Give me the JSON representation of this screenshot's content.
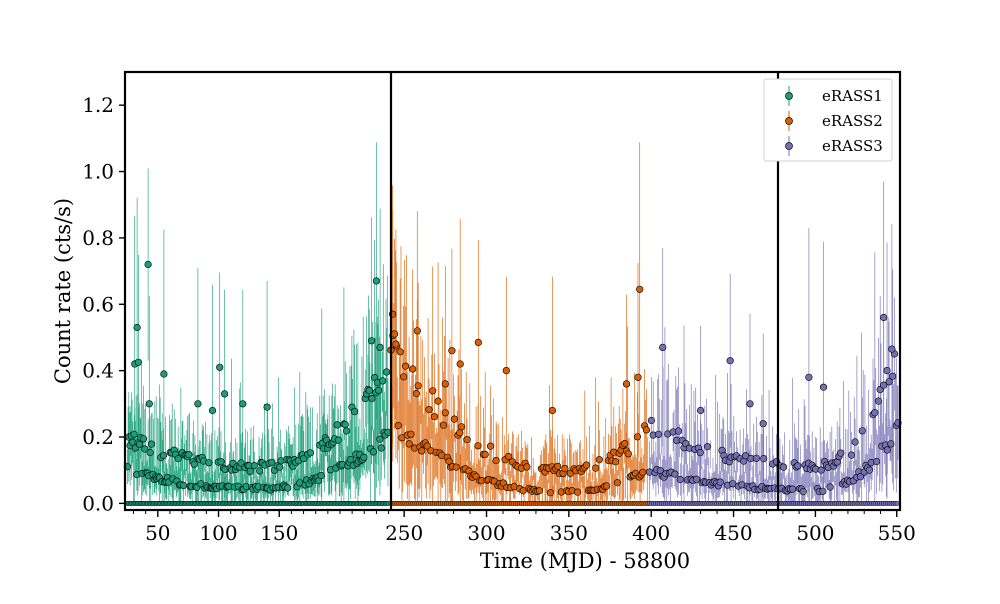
{
  "chart_data": {
    "type": "scatter",
    "title": "",
    "xlabel": "Time (MJD) - 58800",
    "ylabel": "Count rate (cts/s)",
    "ylim": [
      -0.02,
      1.3
    ],
    "yticks": [
      0.0,
      0.2,
      0.4,
      0.6,
      0.8,
      1.0,
      1.2
    ],
    "ytick_labels": [
      "0.0",
      "0.2",
      "0.4",
      "0.6",
      "0.8",
      "1.0",
      "1.2"
    ],
    "legend_position": "top-right",
    "grid": false,
    "broken_x_axis": true,
    "panels": [
      {
        "xlim": [
          23,
          242
        ],
        "xticks": [
          50,
          100,
          150
        ],
        "xtick_labels": [
          "50",
          "100",
          "150"
        ]
      },
      {
        "xlim": [
          242,
          477
        ],
        "xticks": [
          250,
          300,
          350,
          400,
          450
        ],
        "xtick_labels": [
          "250",
          "300",
          "350",
          "400",
          "450"
        ]
      },
      {
        "xlim": [
          477,
          552
        ],
        "xticks": [
          500,
          550
        ],
        "xtick_labels": [
          "500",
          "550"
        ]
      }
    ],
    "series": [
      {
        "name": "eRASS1",
        "color": "#1b9e77",
        "x_range": [
          25,
          240
        ],
        "trend": {
          "low_min": 0.045,
          "low_edge": [
            0.1,
            0.21
          ],
          "high_min": 0.11,
          "high_edge": [
            0.2,
            0.42
          ],
          "err_scale": 0.38,
          "peak_x": 132
        },
        "outliers": [
          [
            42,
            0.72
          ],
          [
            33,
            0.53
          ],
          [
            31,
            0.42
          ],
          [
            34,
            0.425
          ],
          [
            43,
            0.3
          ],
          [
            55,
            0.39
          ],
          [
            83,
            0.3
          ],
          [
            101,
            0.41
          ],
          [
            105,
            0.33
          ],
          [
            120,
            0.3
          ],
          [
            230,
            0.67
          ],
          [
            226,
            0.49
          ],
          [
            233,
            0.47
          ],
          [
            95,
            0.28
          ],
          [
            140,
            0.29
          ]
        ]
      },
      {
        "name": "eRASS2",
        "color": "#d95f02",
        "x_range": [
          242,
          398
        ],
        "trend": {
          "low_min": 0.035,
          "low_edge": [
            0.25,
            0.1
          ],
          "high_min": 0.1,
          "high_edge": [
            0.48,
            0.22
          ],
          "err_scale": 0.42,
          "peak_x": 345
        },
        "outliers": [
          [
            243,
            0.57
          ],
          [
            245,
            0.48
          ],
          [
            258,
            0.52
          ],
          [
            279,
            0.46
          ],
          [
            284,
            0.42
          ],
          [
            295,
            0.485
          ],
          [
            312,
            0.4
          ],
          [
            393,
            0.645
          ],
          [
            392,
            0.38
          ],
          [
            385,
            0.36
          ],
          [
            275,
            0.36
          ],
          [
            340,
            0.28
          ]
        ]
      },
      {
        "name": "eRASS3",
        "color": "#7570b3",
        "x_range": [
          399,
          551
        ],
        "trend": {
          "low_min": 0.04,
          "low_edge": [
            0.1,
            0.23
          ],
          "high_min": 0.11,
          "high_edge": [
            0.24,
            0.46
          ],
          "err_scale": 0.4,
          "peak_x": 500
        },
        "outliers": [
          [
            407,
            0.47
          ],
          [
            448,
            0.43
          ],
          [
            468,
            0.24
          ],
          [
            496,
            0.38
          ],
          [
            505,
            0.35
          ],
          [
            542,
            0.56
          ],
          [
            547,
            0.465
          ],
          [
            544,
            0.4
          ],
          [
            430,
            0.28
          ],
          [
            460,
            0.3
          ]
        ]
      }
    ]
  }
}
